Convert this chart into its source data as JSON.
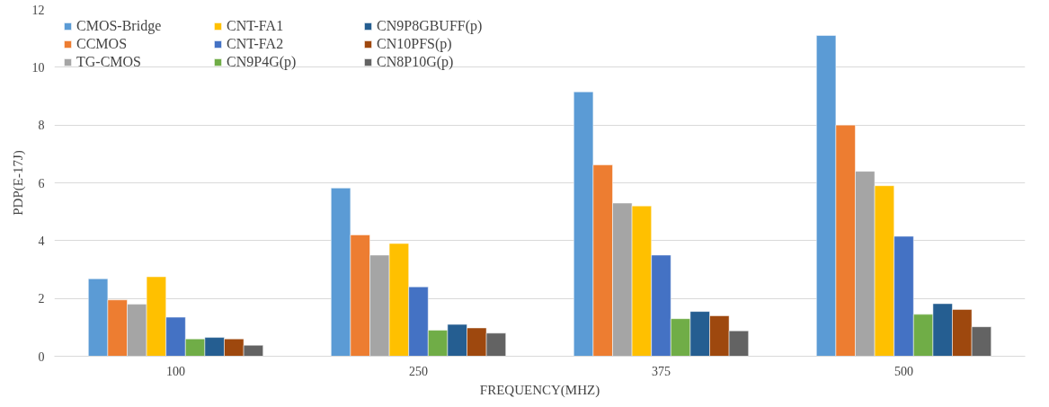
{
  "chart_data": {
    "type": "bar",
    "xlabel": "FREQUENCY(MHZ)",
    "ylabel": "PDP(E-17J)",
    "categories": [
      "100",
      "250",
      "375",
      "500"
    ],
    "series": [
      {
        "name": "CMOS-Bridge",
        "color": "#5b9bd5",
        "values": [
          2.68,
          5.82,
          9.15,
          11.1
        ]
      },
      {
        "name": "CCMOS",
        "color": "#ed7d31",
        "values": [
          1.95,
          4.2,
          6.62,
          8.0
        ]
      },
      {
        "name": "TG-CMOS",
        "color": "#a5a5a5",
        "values": [
          1.8,
          3.5,
          5.3,
          6.4
        ]
      },
      {
        "name": "CNT-FA1",
        "color": "#ffc000",
        "values": [
          2.75,
          3.9,
          5.2,
          5.9
        ]
      },
      {
        "name": "CNT-FA2",
        "color": "#4472c4",
        "values": [
          1.35,
          2.4,
          3.5,
          4.15
        ]
      },
      {
        "name": "CN9P4G(p)",
        "color": "#70ad47",
        "values": [
          0.6,
          0.9,
          1.3,
          1.45
        ]
      },
      {
        "name": "CN9P8GBUFF(p)",
        "color": "#255e91",
        "values": [
          0.65,
          1.1,
          1.55,
          1.82
        ]
      },
      {
        "name": "CN10PFS(p)",
        "color": "#9e480e",
        "values": [
          0.6,
          0.98,
          1.4,
          1.62
        ]
      },
      {
        "name": "CN8P10G(p)",
        "color": "#636363",
        "values": [
          0.38,
          0.8,
          0.88,
          1.02
        ]
      }
    ],
    "ylim": [
      0,
      12
    ],
    "yticks": [
      0,
      2,
      4,
      6,
      8,
      10,
      12
    ],
    "grid": "y",
    "legend": "top left"
  }
}
